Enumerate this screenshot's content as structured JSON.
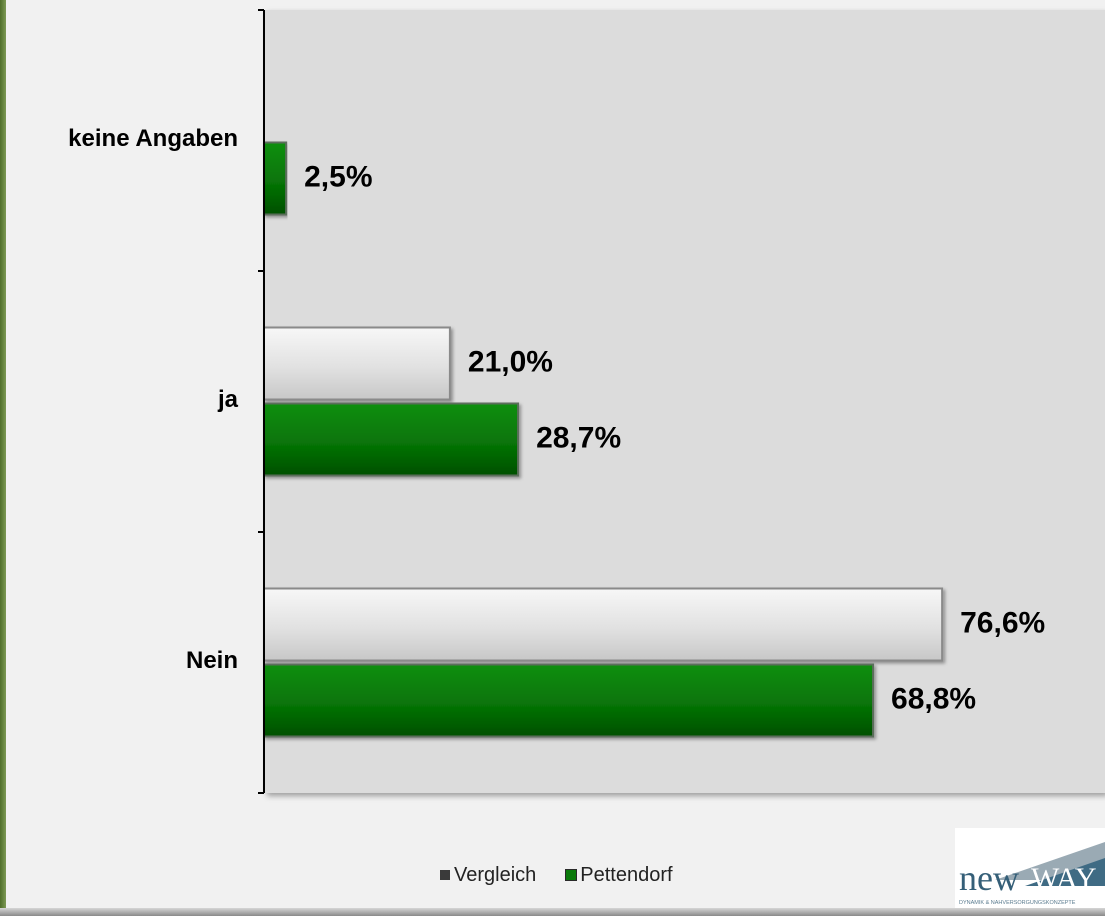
{
  "chart_data": {
    "type": "bar",
    "orientation": "horizontal",
    "categories": [
      "keine Angaben",
      "ja",
      "Nein"
    ],
    "series": [
      {
        "name": "Vergleich",
        "values": [
          null,
          21.0,
          76.6
        ],
        "labels": [
          "",
          "21,0%",
          "76,6%"
        ],
        "color": "#dedede"
      },
      {
        "name": "Pettendorf",
        "values": [
          2.5,
          28.7,
          68.8
        ],
        "labels": [
          "2,5%",
          "28,7%",
          "68,8%"
        ],
        "color": "#0a7a0a"
      }
    ],
    "xlim": [
      0,
      95
    ],
    "grid": false,
    "legend_position": "bottom"
  },
  "logo": {
    "text": "newWAY",
    "tagline": "DYNAMIK & NAHVERSORGUNGSKONZEPTE"
  },
  "colors": {
    "plot_bg": "#dcdcdc",
    "page_bg": "#f1f1f1",
    "green": "#0a7a0a",
    "gray_bar": "#dedede"
  }
}
